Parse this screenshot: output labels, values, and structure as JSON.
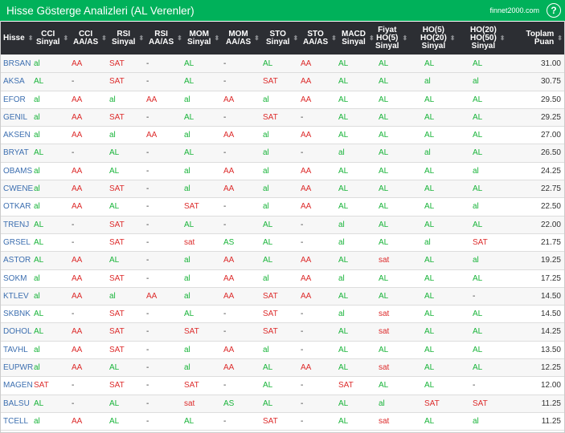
{
  "title": "Hisse Gösterge Analizleri (AL Verenler)",
  "site": "finnet2000.com",
  "help_icon": "?",
  "colors": {
    "header_bar": "#00b15a",
    "table_header": "#2c2e33",
    "positive": "#19b43a",
    "negative": "#dd2c2c",
    "ticker": "#3d6fb0"
  },
  "columns": [
    "Hisse",
    "CCI Sinyal",
    "CCI AA/AS",
    "RSI Sinyal",
    "RSI AA/AS",
    "MOM Sinyal",
    "MOM AA/AS",
    "STO Sinyal",
    "STO AA/AS",
    "MACD Sinyal",
    "Fiyat HO(5) Sinyal",
    "HO(5) HO(20) Sinyal",
    "HO(20) HO(50) Sinyal",
    "Toplam Puan"
  ],
  "rows": [
    [
      "BRSAN",
      "al",
      "AA",
      "SAT",
      "-",
      "AL",
      "-",
      "AL",
      "AA",
      "AL",
      "AL",
      "AL",
      "AL",
      "31.00"
    ],
    [
      "AKSA",
      "AL",
      "-",
      "SAT",
      "-",
      "AL",
      "-",
      "SAT",
      "AA",
      "AL",
      "AL",
      "al",
      "al",
      "30.75"
    ],
    [
      "EFOR",
      "al",
      "AA",
      "al",
      "AA",
      "al",
      "AA",
      "al",
      "AA",
      "AL",
      "AL",
      "AL",
      "AL",
      "29.50"
    ],
    [
      "GENIL",
      "al",
      "AA",
      "SAT",
      "-",
      "AL",
      "-",
      "SAT",
      "-",
      "AL",
      "AL",
      "AL",
      "AL",
      "29.25"
    ],
    [
      "AKSEN",
      "al",
      "AA",
      "al",
      "AA",
      "al",
      "AA",
      "al",
      "AA",
      "AL",
      "AL",
      "AL",
      "AL",
      "27.00"
    ],
    [
      "BRYAT",
      "AL",
      "-",
      "AL",
      "-",
      "AL",
      "-",
      "al",
      "-",
      "al",
      "AL",
      "al",
      "AL",
      "26.50"
    ],
    [
      "OBAMS",
      "al",
      "AA",
      "AL",
      "-",
      "al",
      "AA",
      "al",
      "AA",
      "AL",
      "AL",
      "AL",
      "al",
      "24.25"
    ],
    [
      "CWENE",
      "al",
      "AA",
      "SAT",
      "-",
      "al",
      "AA",
      "al",
      "AA",
      "AL",
      "AL",
      "AL",
      "AL",
      "22.75"
    ],
    [
      "OTKAR",
      "al",
      "AA",
      "AL",
      "-",
      "SAT",
      "-",
      "al",
      "AA",
      "AL",
      "AL",
      "AL",
      "al",
      "22.50"
    ],
    [
      "TRENJ",
      "AL",
      "-",
      "SAT",
      "-",
      "AL",
      "-",
      "AL",
      "-",
      "al",
      "AL",
      "AL",
      "AL",
      "22.00"
    ],
    [
      "GRSEL",
      "AL",
      "-",
      "SAT",
      "-",
      "sat",
      "AS",
      "AL",
      "-",
      "al",
      "AL",
      "al",
      "SAT",
      "21.75"
    ],
    [
      "ASTOR",
      "AL",
      "AA",
      "AL",
      "-",
      "al",
      "AA",
      "AL",
      "AA",
      "AL",
      "sat",
      "AL",
      "al",
      "19.25"
    ],
    [
      "SOKM",
      "al",
      "AA",
      "SAT",
      "-",
      "al",
      "AA",
      "al",
      "AA",
      "al",
      "AL",
      "AL",
      "AL",
      "17.25"
    ],
    [
      "KTLEV",
      "al",
      "AA",
      "al",
      "AA",
      "al",
      "AA",
      "SAT",
      "AA",
      "AL",
      "AL",
      "AL",
      "-",
      "14.50"
    ],
    [
      "SKBNK",
      "AL",
      "-",
      "SAT",
      "-",
      "AL",
      "-",
      "SAT",
      "-",
      "al",
      "sat",
      "AL",
      "AL",
      "14.50"
    ],
    [
      "DOHOL",
      "AL",
      "AA",
      "SAT",
      "-",
      "SAT",
      "-",
      "SAT",
      "-",
      "AL",
      "sat",
      "AL",
      "AL",
      "14.25"
    ],
    [
      "TAVHL",
      "al",
      "AA",
      "SAT",
      "-",
      "al",
      "AA",
      "al",
      "-",
      "AL",
      "AL",
      "AL",
      "AL",
      "13.50"
    ],
    [
      "EUPWR",
      "al",
      "AA",
      "AL",
      "-",
      "al",
      "AA",
      "AL",
      "AA",
      "AL",
      "sat",
      "AL",
      "AL",
      "12.25"
    ],
    [
      "MAGEN",
      "SAT",
      "-",
      "SAT",
      "-",
      "SAT",
      "-",
      "AL",
      "-",
      "SAT",
      "AL",
      "AL",
      "-",
      "12.00"
    ],
    [
      "BALSU",
      "AL",
      "-",
      "AL",
      "-",
      "sat",
      "AS",
      "AL",
      "-",
      "AL",
      "al",
      "SAT",
      "SAT",
      "11.25"
    ],
    [
      "TCELL",
      "al",
      "AA",
      "AL",
      "-",
      "AL",
      "-",
      "SAT",
      "-",
      "AL",
      "sat",
      "AL",
      "al",
      "11.25"
    ]
  ]
}
